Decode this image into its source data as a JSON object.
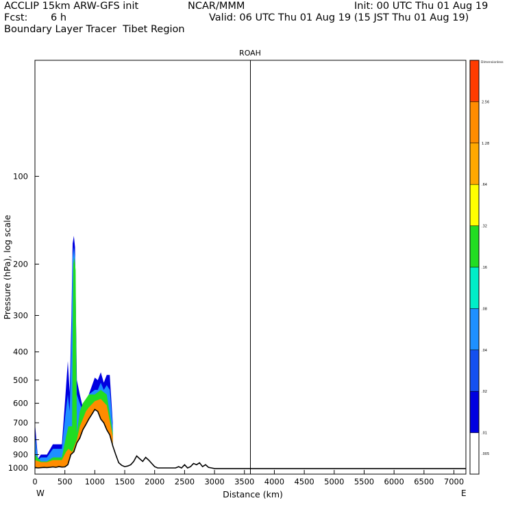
{
  "header": {
    "model": "ACCLIP 15km ARW-GFS init",
    "org": "NCAR/MMM",
    "init": "Init: 00 UTC Thu 01 Aug 19",
    "fcst_label": "Fcst:",
    "fcst_value": "6 h",
    "valid": "Valid: 06 UTC Thu 01 Aug 19 (15 JST Thu 01 Aug 19)",
    "field": "Boundary Layer Tracer  Tibet Region"
  },
  "chart_data": {
    "type": "cross-section",
    "title": "ROAH",
    "xlabel": "Distance (km)",
    "ylabel": "Pressure (hPa), log scale",
    "xlim": [
      0,
      7200
    ],
    "ylim_hpa": [
      1050,
      40
    ],
    "x_ticks": [
      0,
      500,
      1000,
      1500,
      2000,
      2500,
      3000,
      3500,
      4000,
      4500,
      5000,
      5500,
      6000,
      6500,
      7000
    ],
    "y_ticks": [
      100,
      200,
      300,
      400,
      500,
      600,
      700,
      800,
      900,
      1000
    ],
    "left_end_label": "W",
    "right_end_label": "E",
    "vertical_marker_km": 3600,
    "colorbar": {
      "label_top": "Dimensionless",
      "levels": [
        "2.56",
        "1.28",
        ".64",
        ".32",
        ".16",
        ".08",
        ".04",
        ".02",
        ".01",
        ".005"
      ],
      "colors": [
        "#ff3c00",
        "#ff8c00",
        "#ffa800",
        "#ffff00",
        "#22dd22",
        "#00eec8",
        "#1e90ff",
        "#1450f0",
        "#0000e0",
        "#ffffff"
      ]
    },
    "terrain": {
      "name": "surface pressure",
      "x": [
        0,
        50,
        100,
        150,
        200,
        250,
        300,
        350,
        400,
        450,
        500,
        550,
        600,
        650,
        700,
        750,
        800,
        850,
        900,
        950,
        1000,
        1050,
        1100,
        1150,
        1200,
        1250,
        1300,
        1350,
        1400,
        1450,
        1500,
        1550,
        1600,
        1650,
        1700,
        1750,
        1800,
        1850,
        1900,
        1950,
        2000,
        2050,
        2100,
        2150,
        2200,
        2250,
        2300,
        2350,
        2400,
        2450,
        2500,
        2550,
        2600,
        2650,
        2700,
        2750,
        2800,
        2850,
        2900,
        2950,
        3000,
        7200
      ],
      "p": [
        995,
        1000,
        998,
        996,
        997,
        995,
        992,
        995,
        990,
        993,
        992,
        975,
        900,
        880,
        820,
        790,
        740,
        710,
        680,
        655,
        630,
        640,
        680,
        700,
        740,
        770,
        840,
        900,
        960,
        980,
        990,
        985,
        975,
        950,
        910,
        930,
        950,
        920,
        940,
        965,
        990,
        1000,
        1000,
        1000,
        1000,
        1000,
        1000,
        1000,
        990,
        1000,
        975,
        1000,
        990,
        965,
        975,
        960,
        990,
        975,
        995,
        1000,
        1005,
        1005
      ]
    },
    "tracer_shading": [
      {
        "level": ">0.01",
        "color": "#0000e0",
        "x": [
          0,
          50,
          100,
          200,
          300,
          450,
          500,
          550,
          580,
          610,
          630,
          650,
          670,
          700,
          750,
          800,
          850,
          900,
          1000,
          1050,
          1100,
          1150,
          1200,
          1250,
          1300
        ],
        "p_top": [
          700,
          930,
          900,
          900,
          830,
          830,
          600,
          430,
          550,
          300,
          170,
          160,
          175,
          500,
          560,
          620,
          650,
          560,
          490,
          500,
          470,
          510,
          480,
          480,
          700
        ]
      },
      {
        "level": ">0.04",
        "color": "#1e90ff",
        "x": [
          0,
          50,
          100,
          200,
          300,
          450,
          500,
          550,
          580,
          610,
          630,
          650,
          670,
          700,
          750,
          800,
          850,
          900,
          1000,
          1050,
          1100,
          1150,
          1200,
          1250,
          1300
        ],
        "p_top": [
          760,
          940,
          920,
          920,
          860,
          860,
          680,
          560,
          640,
          360,
          190,
          175,
          190,
          560,
          600,
          640,
          600,
          560,
          540,
          540,
          510,
          540,
          520,
          540,
          720
        ]
      },
      {
        "level": ">0.16",
        "color": "#22dd22",
        "x": [
          0,
          100,
          200,
          300,
          450,
          520,
          560,
          620,
          640,
          660,
          680,
          700,
          750,
          800,
          850,
          900,
          1000,
          1100,
          1200,
          1300
        ],
        "p_top": [
          900,
          950,
          950,
          920,
          920,
          780,
          720,
          720,
          200,
          190,
          210,
          760,
          640,
          600,
          580,
          560,
          560,
          540,
          560,
          760
        ]
      },
      {
        "level": ">1.28",
        "color": "#ff8c00",
        "x": [
          0,
          100,
          200,
          300,
          450,
          520,
          560,
          620,
          700,
          750,
          800,
          850,
          900,
          1000,
          1100,
          1200,
          1300
        ],
        "p_top": [
          940,
          955,
          955,
          940,
          940,
          880,
          860,
          880,
          800,
          720,
          680,
          640,
          620,
          590,
          580,
          610,
          780
        ]
      }
    ]
  }
}
